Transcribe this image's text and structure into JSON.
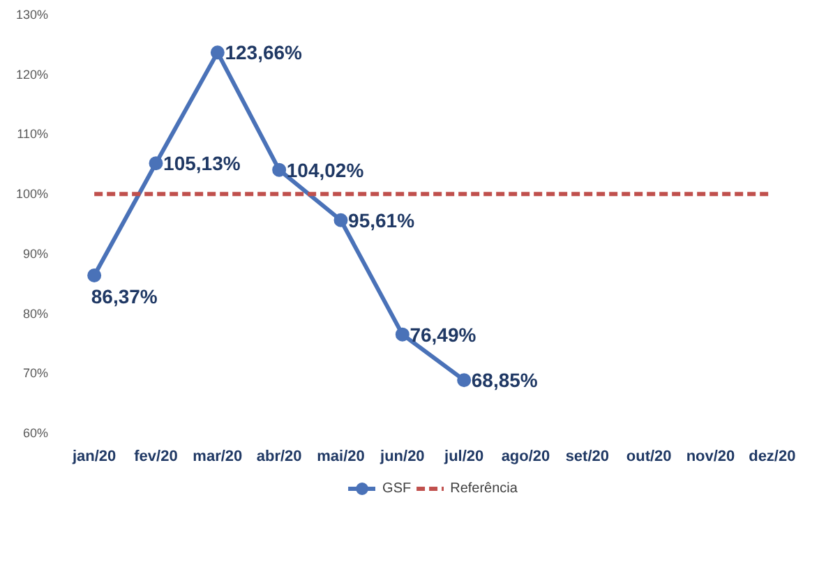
{
  "chart_data": {
    "type": "line",
    "categories": [
      "jan/20",
      "fev/20",
      "mar/20",
      "abr/20",
      "mai/20",
      "jun/20",
      "jul/20",
      "ago/20",
      "set/20",
      "out/20",
      "nov/20",
      "dez/20"
    ],
    "series": [
      {
        "name": "GSF",
        "color": "#4a72b8",
        "marker": "circle",
        "line_style": "solid",
        "values": [
          86.37,
          105.13,
          123.66,
          104.02,
          95.61,
          76.49,
          68.85,
          null,
          null,
          null,
          null,
          null
        ],
        "value_labels": [
          "86,37%",
          "105,13%",
          "123,66%",
          "104,02%",
          "95,61%",
          "76,49%",
          "68,85%",
          null,
          null,
          null,
          null,
          null
        ]
      },
      {
        "name": "Referência",
        "color": "#c0504d",
        "marker": "none",
        "line_style": "dashed",
        "values": [
          100,
          100,
          100,
          100,
          100,
          100,
          100,
          100,
          100,
          100,
          100,
          100
        ]
      }
    ],
    "ylim": [
      60,
      130
    ],
    "yticks": [
      {
        "value": 60,
        "label": "60%"
      },
      {
        "value": 70,
        "label": "70%"
      },
      {
        "value": 80,
        "label": "80%"
      },
      {
        "value": 90,
        "label": "90%"
      },
      {
        "value": 100,
        "label": "100%"
      },
      {
        "value": 110,
        "label": "110%"
      },
      {
        "value": 120,
        "label": "120%"
      },
      {
        "value": 130,
        "label": "130%"
      }
    ],
    "grid": false,
    "legend": "bottom"
  }
}
